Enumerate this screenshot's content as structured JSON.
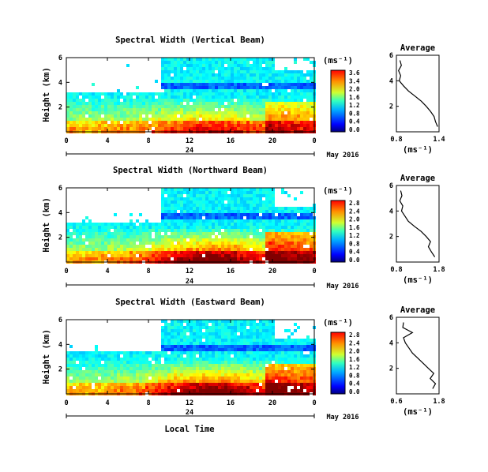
{
  "chart_data": [
    {
      "type": "heatmap",
      "title": "Spectral Width (Vertical Beam)",
      "ylabel": "Height (km)",
      "unit": "(ms⁻¹)",
      "x_ticks": [
        "0",
        "4",
        "8",
        "12",
        "16",
        "20",
        "0"
      ],
      "y_ticks": [
        "6",
        "4",
        "2"
      ],
      "date_mark": "24",
      "date_label": "May 2016",
      "colorbar": {
        "ticks": [
          "3.6",
          "3.4",
          "2.0",
          "1.6",
          "1.2",
          "0.8",
          "0.4",
          "0.0"
        ],
        "range": [
          0,
          3.6
        ]
      },
      "profile": {
        "title": "Average",
        "xlabel": "(ms⁻¹)",
        "x_ticks": [
          "0.8",
          "1.4"
        ],
        "y_ticks": [
          "6",
          "4",
          "2"
        ],
        "xlim": [
          0.8,
          1.4
        ],
        "heights": [
          0.4,
          0.8,
          1.2,
          1.6,
          2.0,
          2.4,
          2.8,
          3.2,
          3.6,
          4.0,
          4.4,
          4.8,
          5.2,
          5.6
        ],
        "values": [
          1.38,
          1.35,
          1.33,
          1.28,
          1.22,
          1.15,
          1.06,
          0.97,
          0.9,
          0.84,
          0.86,
          0.83,
          0.87,
          0.85
        ]
      }
    },
    {
      "type": "heatmap",
      "title": "Spectral Width (Northward Beam)",
      "ylabel": "Height (km)",
      "unit": "(ms⁻¹)",
      "x_ticks": [
        "0",
        "4",
        "8",
        "12",
        "16",
        "20",
        "0"
      ],
      "y_ticks": [
        "6",
        "4",
        "2"
      ],
      "date_mark": "24",
      "date_label": "May 2016",
      "colorbar": {
        "ticks": [
          "2.8",
          "2.4",
          "2.0",
          "1.6",
          "1.2",
          "0.8",
          "0.4",
          "0.0"
        ],
        "range": [
          0,
          2.8
        ]
      },
      "profile": {
        "title": "Average",
        "xlabel": "(ms⁻¹)",
        "x_ticks": [
          "0.8",
          "1.8"
        ],
        "y_ticks": [
          "6",
          "4",
          "2"
        ],
        "xlim": [
          0.8,
          1.8
        ],
        "heights": [
          0.4,
          0.8,
          1.2,
          1.6,
          2.0,
          2.4,
          2.8,
          3.2,
          3.6,
          4.0,
          4.4,
          4.8,
          5.2,
          5.6
        ],
        "values": [
          1.7,
          1.62,
          1.55,
          1.6,
          1.5,
          1.38,
          1.22,
          1.08,
          1.0,
          0.92,
          0.95,
          0.88,
          0.93,
          0.9
        ]
      }
    },
    {
      "type": "heatmap",
      "title": "Spectral Width (Eastward Beam)",
      "ylabel": "Height (km)",
      "unit": "(ms⁻¹)",
      "x_ticks": [
        "0",
        "4",
        "8",
        "12",
        "16",
        "20",
        "0"
      ],
      "y_ticks": [
        "6",
        "4",
        "2"
      ],
      "date_mark": "24",
      "date_label": "May 2016",
      "xlabel": "Local Time",
      "colorbar": {
        "ticks": [
          "2.8",
          "2.4",
          "2.0",
          "1.6",
          "1.2",
          "0.8",
          "0.4",
          "0.0"
        ],
        "range": [
          0,
          2.8
        ]
      },
      "profile": {
        "title": "Average",
        "xlabel": "(ms⁻¹)",
        "x_ticks": [
          "0.6",
          "1.8"
        ],
        "y_ticks": [
          "6",
          "4",
          "2"
        ],
        "xlim": [
          0.6,
          1.8
        ],
        "heights": [
          0.4,
          0.8,
          1.2,
          1.6,
          2.0,
          2.4,
          2.8,
          3.2,
          3.6,
          4.0,
          4.4,
          4.8,
          5.2,
          5.6
        ],
        "values": [
          1.62,
          1.7,
          1.55,
          1.65,
          1.5,
          1.35,
          1.2,
          1.05,
          0.95,
          0.85,
          0.8,
          1.05,
          0.78,
          0.8
        ]
      }
    }
  ]
}
